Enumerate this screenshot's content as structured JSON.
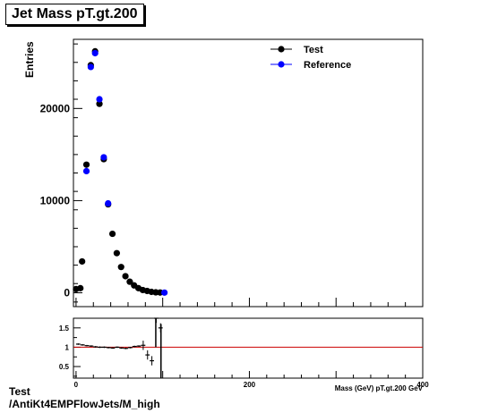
{
  "title": "Jet Mass pT.gt.200",
  "footer": {
    "line1": "Test",
    "line2": "/AntiKt4EMPFlowJets/M_high"
  },
  "colors": {
    "test": "#000000",
    "reference": "#0000ff",
    "ratio_line": "#cc0000"
  },
  "chart_data": [
    {
      "type": "scatter",
      "title": "Jet Mass pT.gt.200",
      "xlabel": "Mass (GeV) pT.gt.200 GeV",
      "ylabel": "Entries",
      "xlim": [
        -3,
        400
      ],
      "ylim": [
        -1500,
        27500
      ],
      "y_ticks": [
        0,
        10000,
        20000
      ],
      "y_tick_labels": [
        "0",
        "10000",
        "20000"
      ],
      "legend": {
        "position": "top-right",
        "entries": [
          "Test",
          "Reference"
        ]
      },
      "series": [
        {
          "name": "Test",
          "x": [
            0,
            5,
            7,
            12,
            17,
            22,
            27,
            32,
            37,
            42,
            47,
            52,
            57,
            62,
            67,
            72,
            77,
            82,
            87,
            92,
            97
          ],
          "y": [
            400,
            500,
            3400,
            13900,
            24700,
            26200,
            20500,
            14500,
            9600,
            6400,
            4300,
            2800,
            1800,
            1200,
            800,
            500,
            300,
            200,
            100,
            50,
            30
          ]
        },
        {
          "name": "Reference",
          "x": [
            12,
            17,
            22,
            27,
            32,
            37,
            102
          ],
          "y": [
            13200,
            24500,
            26000,
            21000,
            14700,
            9700,
            20
          ]
        }
      ]
    },
    {
      "type": "bar",
      "title": "",
      "xlabel": "",
      "ylabel": "",
      "xlim": [
        -3,
        400
      ],
      "ylim": [
        0.2,
        1.75
      ],
      "y_ticks": [
        0.5,
        1,
        1.5
      ],
      "y_tick_labels": [
        "0.5",
        "1",
        "1.5"
      ],
      "x_ticks": [
        0,
        200,
        400
      ],
      "x_tick_labels": [
        "0",
        "200",
        "400"
      ],
      "reference_line": 1,
      "series": [
        {
          "name": "",
          "x": [
            0,
            5,
            10,
            15,
            20,
            25,
            30,
            35,
            40,
            45,
            50,
            55,
            60,
            65,
            70,
            75,
            80,
            85,
            90,
            95
          ],
          "y": [
            1.08,
            1.06,
            1.04,
            1.03,
            1.01,
            1.0,
            1.0,
            0.99,
            0.98,
            1.0,
            0.98,
            0.97,
            0.99,
            1.02,
            1.03,
            1.05,
            0.8,
            0.65,
            1.75,
            1.5
          ]
        }
      ]
    }
  ]
}
